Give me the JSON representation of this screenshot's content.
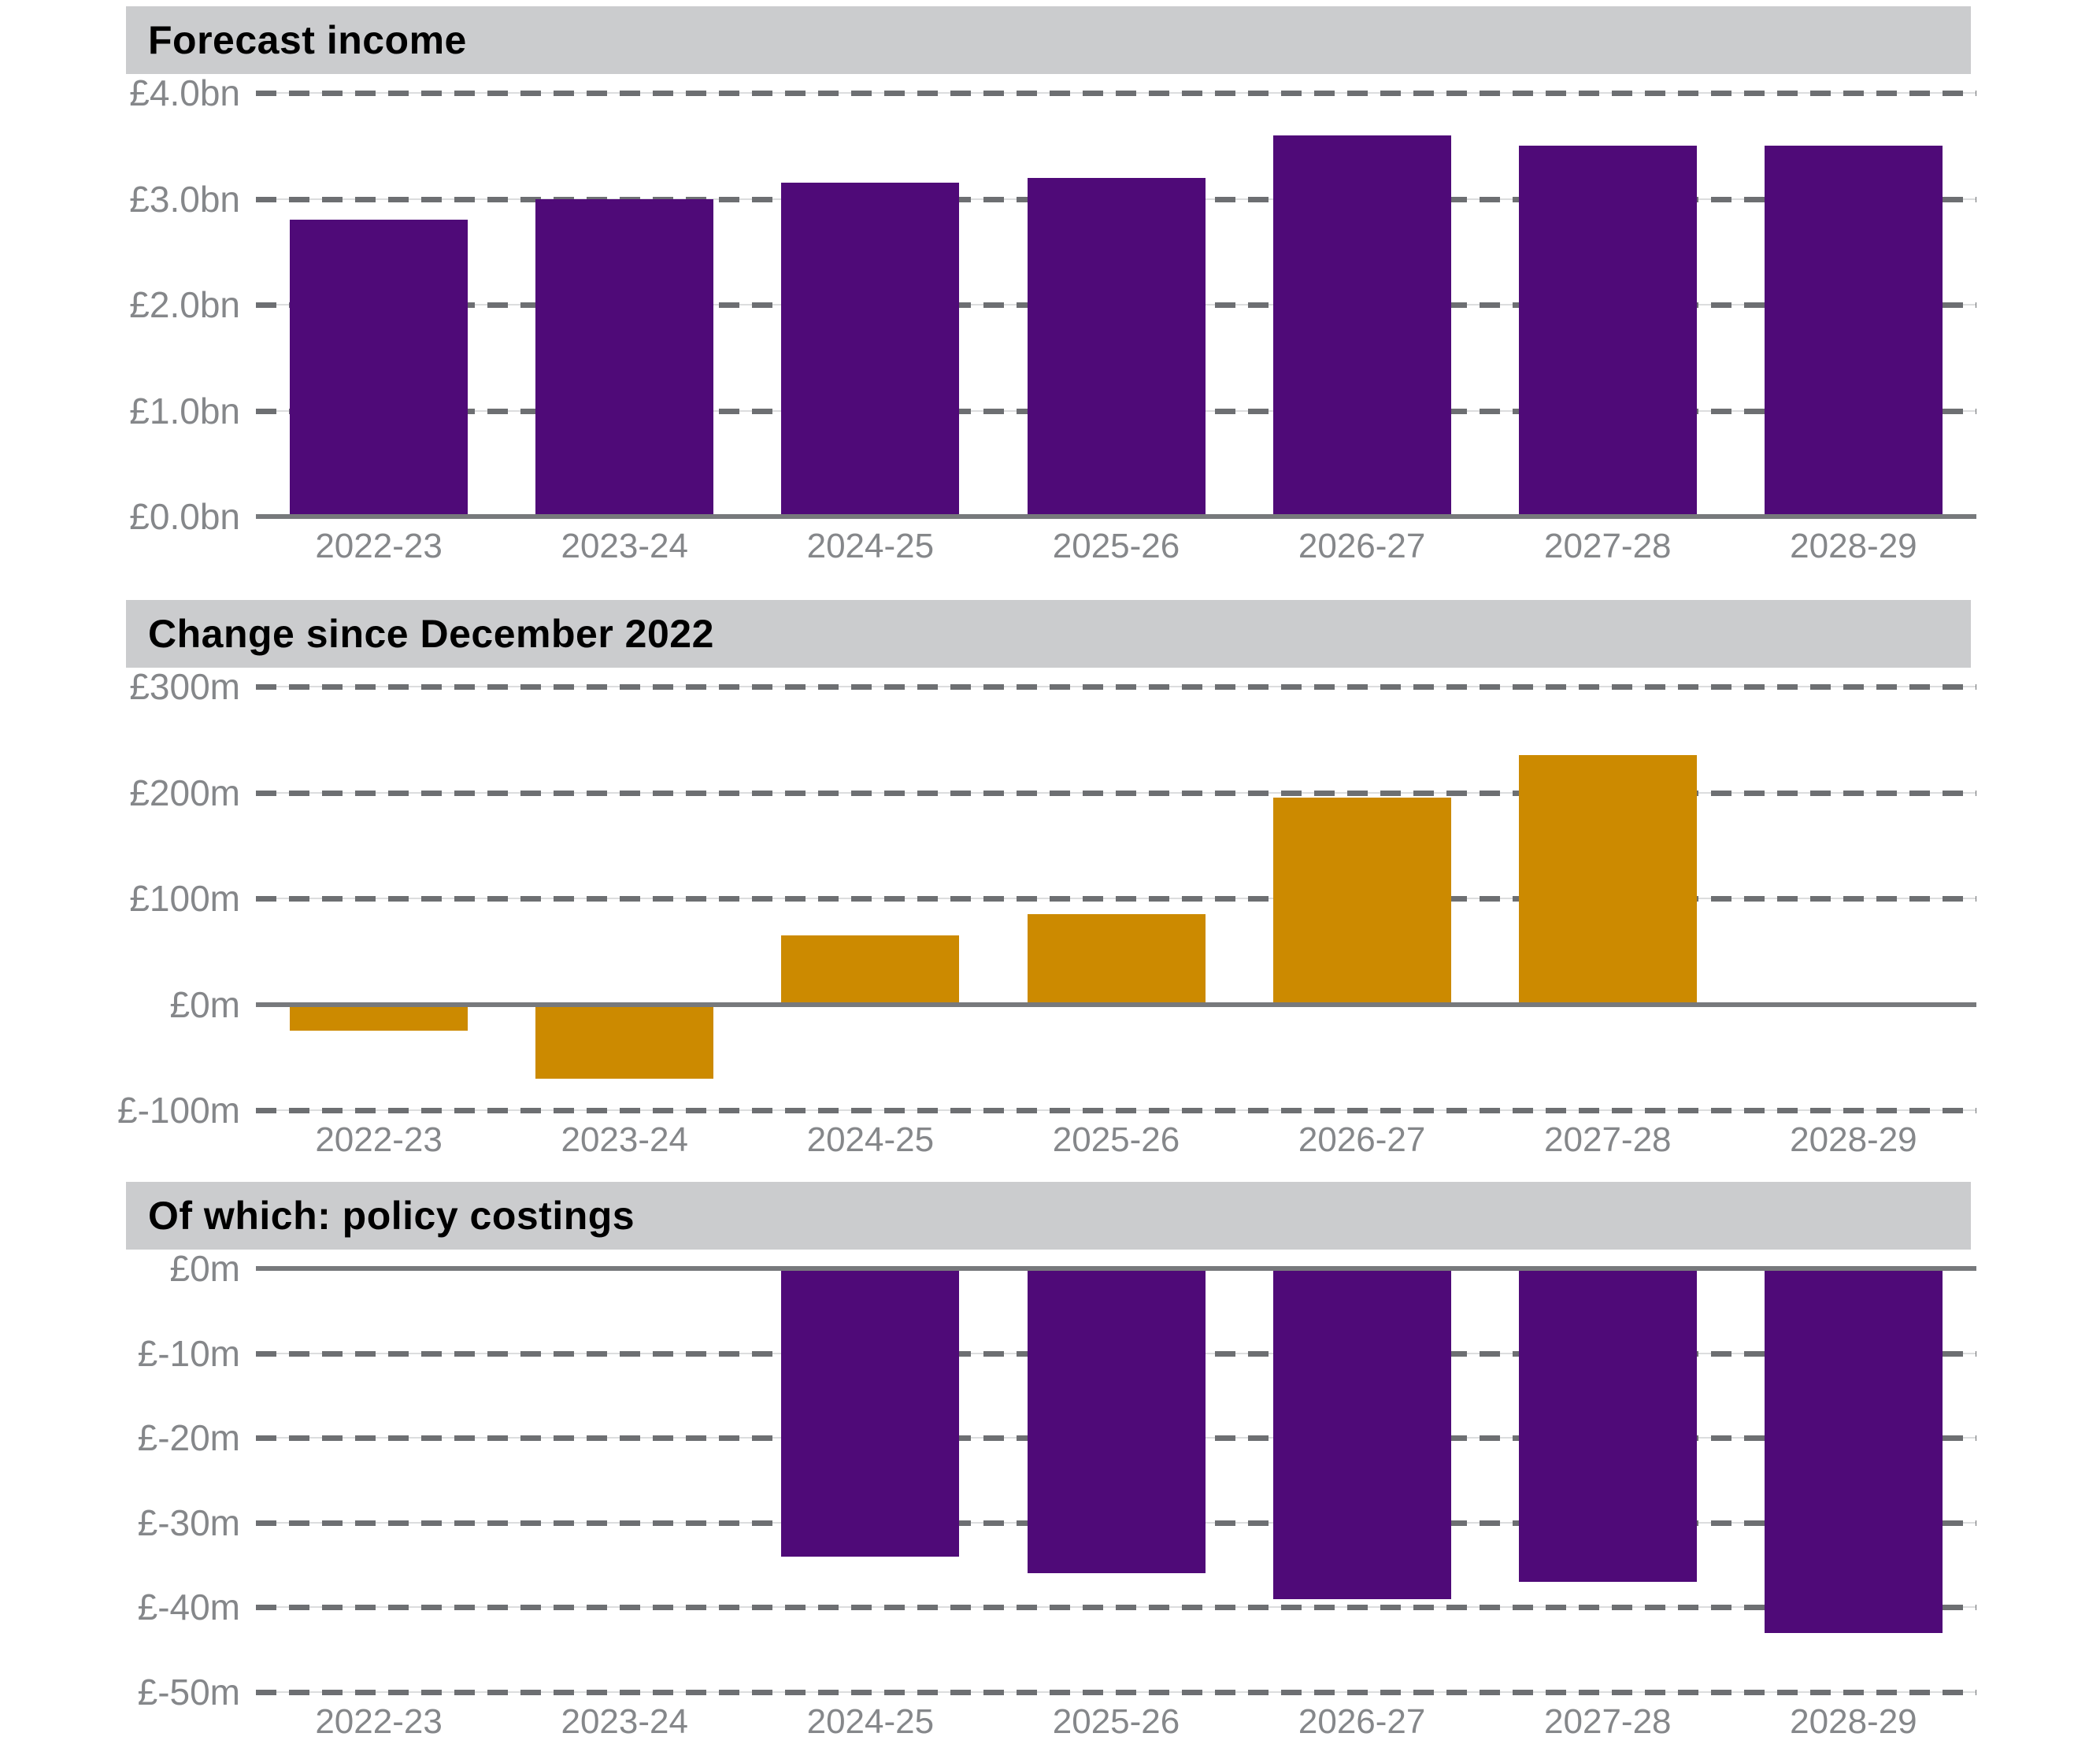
{
  "colors": {
    "purple": "#4F0A78",
    "ochre": "#CC8A00",
    "banner_bg": "#CBCCCE",
    "axis_label_gray": "#85878A",
    "gridline_gray": "#6D6F72",
    "zero_line_gray": "#77797C",
    "background": "#FFFFFF"
  },
  "chart_data": [
    {
      "type": "bar",
      "title": "Forecast income",
      "unit": "£bn",
      "categories": [
        "2022-23",
        "2023-24",
        "2024-25",
        "2025-26",
        "2026-27",
        "2027-28",
        "2028-29"
      ],
      "values": [
        2.8,
        3.0,
        3.15,
        3.2,
        3.6,
        3.5,
        3.5
      ],
      "bar_color": "#4F0A78",
      "ylim": [
        0,
        4
      ],
      "y_ticks": [
        {
          "value": 4,
          "label": "£4.0bn"
        },
        {
          "value": 3,
          "label": "£3.0bn"
        },
        {
          "value": 2,
          "label": "£2.0bn"
        },
        {
          "value": 1,
          "label": "£1.0bn"
        },
        {
          "value": 0,
          "label": "£0.0bn"
        }
      ],
      "zero_axis": 0,
      "grid": "dashed",
      "legend": "none"
    },
    {
      "type": "bar",
      "title": "Change since December 2022",
      "unit": "£m",
      "categories": [
        "2022-23",
        "2023-24",
        "2024-25",
        "2025-26",
        "2026-27",
        "2027-28",
        "2028-29"
      ],
      "values": [
        -25,
        -70,
        65,
        85,
        195,
        235,
        0
      ],
      "bar_color": "#CC8A00",
      "ylim": [
        -100,
        300
      ],
      "y_ticks": [
        {
          "value": 300,
          "label": "£300m"
        },
        {
          "value": 200,
          "label": "£200m"
        },
        {
          "value": 100,
          "label": "£100m"
        },
        {
          "value": 0,
          "label": "£0m"
        },
        {
          "value": -100,
          "label": "£-100m"
        }
      ],
      "zero_axis": 0,
      "grid": "dashed",
      "legend": "none"
    },
    {
      "type": "bar",
      "title": "Of which: policy costings",
      "unit": "£m",
      "categories": [
        "2022-23",
        "2023-24",
        "2024-25",
        "2025-26",
        "2026-27",
        "2027-28",
        "2028-29"
      ],
      "values": [
        null,
        null,
        -34,
        -36,
        -39,
        -37,
        -43
      ],
      "bar_color": "#4F0A78",
      "ylim": [
        -50,
        0
      ],
      "y_ticks": [
        {
          "value": 0,
          "label": "£0m"
        },
        {
          "value": -10,
          "label": "£-10m"
        },
        {
          "value": -20,
          "label": "£-20m"
        },
        {
          "value": -30,
          "label": "£-30m"
        },
        {
          "value": -40,
          "label": "£-40m"
        },
        {
          "value": -50,
          "label": "£-50m"
        }
      ],
      "zero_axis": 0,
      "grid": "dashed",
      "legend": "none"
    }
  ]
}
